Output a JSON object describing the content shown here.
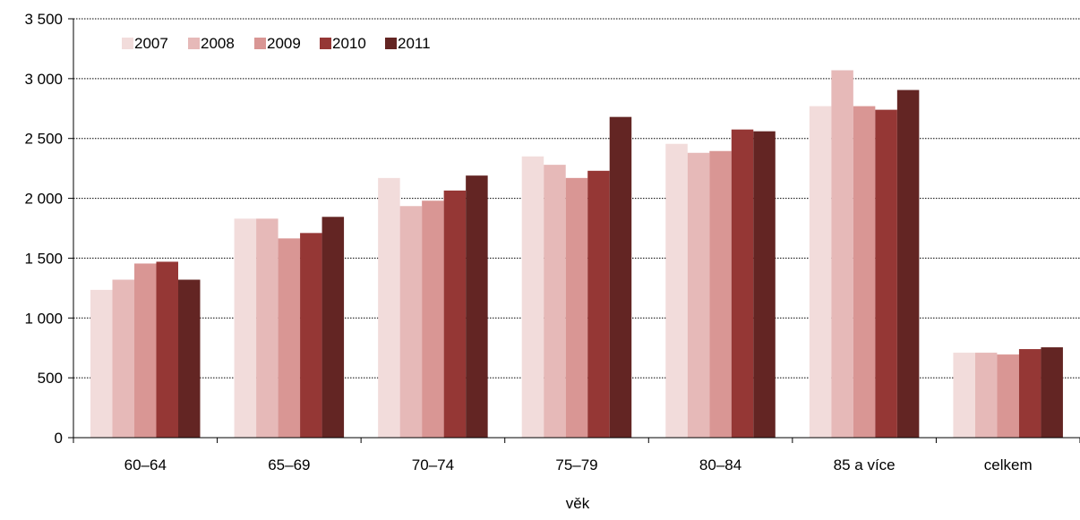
{
  "chart_data": {
    "type": "bar",
    "categories": [
      "60–64",
      "65–69",
      "70–74",
      "75–79",
      "80–84",
      "85 a více",
      "celkem"
    ],
    "series": [
      {
        "name": "2007",
        "color": "#f2dcdb",
        "values": [
          1235,
          1830,
          2170,
          2350,
          2455,
          2770,
          710
        ]
      },
      {
        "name": "2008",
        "color": "#e6b9b8",
        "values": [
          1320,
          1830,
          1935,
          2280,
          2380,
          3070,
          710
        ]
      },
      {
        "name": "2009",
        "color": "#d99694",
        "values": [
          1455,
          1665,
          1980,
          2170,
          2395,
          2770,
          695
        ]
      },
      {
        "name": "2010",
        "color": "#953735",
        "values": [
          1470,
          1710,
          2065,
          2230,
          2575,
          2740,
          740
        ]
      },
      {
        "name": "2011",
        "color": "#632523",
        "values": [
          1320,
          1845,
          2190,
          2680,
          2560,
          2905,
          755
        ]
      }
    ],
    "xlabel": "věk",
    "ylabel": "",
    "ylim": [
      0,
      3500
    ],
    "yticks": [
      0,
      500,
      1000,
      1500,
      2000,
      2500,
      3000,
      3500
    ],
    "ytick_labels": [
      "0",
      "500",
      "1 000",
      "1 500",
      "2 000",
      "2 500",
      "3 000",
      "3 500"
    ],
    "grid": "horizontal dotted",
    "legend_position": "top-left"
  }
}
